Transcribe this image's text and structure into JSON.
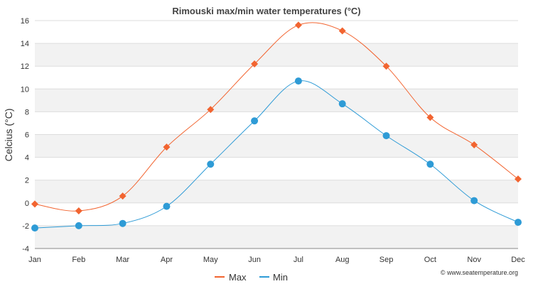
{
  "chart_data": {
    "type": "line",
    "title": "Rimouski max/min water temperatures (°C)",
    "xlabel": "",
    "ylabel": "Celcius (°C)",
    "categories": [
      "Jan",
      "Feb",
      "Mar",
      "Apr",
      "May",
      "Jun",
      "Jul",
      "Aug",
      "Sep",
      "Oct",
      "Nov",
      "Dec"
    ],
    "ylim": [
      -4,
      16
    ],
    "yticks": [
      -4,
      -2,
      0,
      2,
      4,
      6,
      8,
      10,
      12,
      14,
      16
    ],
    "grid": true,
    "legend_position": "bottom-center",
    "series": [
      {
        "name": "Max",
        "color": "#f26430",
        "marker": "diamond",
        "values": [
          -0.1,
          -0.7,
          0.6,
          4.9,
          8.2,
          12.2,
          15.6,
          15.1,
          12.0,
          7.5,
          5.1,
          2.1
        ]
      },
      {
        "name": "Min",
        "color": "#2e9bd6",
        "marker": "circle",
        "values": [
          -2.2,
          -2.0,
          -1.8,
          -0.3,
          3.4,
          7.2,
          10.7,
          8.7,
          5.9,
          3.4,
          0.2,
          -1.7
        ]
      }
    ]
  },
  "credit": "© www.seatemperature.org"
}
